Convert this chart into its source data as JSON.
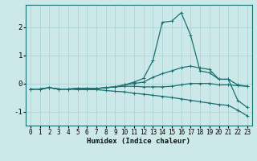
{
  "xlabel": "Humidex (Indice chaleur)",
  "ylabel": "",
  "bg_color": "#cce8e8",
  "grid_color": "#b0d8d8",
  "line_color": "#1a7070",
  "xlim": [
    -0.5,
    23.5
  ],
  "ylim": [
    -1.5,
    2.8
  ],
  "xticks": [
    0,
    1,
    2,
    3,
    4,
    5,
    6,
    7,
    8,
    9,
    10,
    11,
    12,
    13,
    14,
    15,
    16,
    17,
    18,
    19,
    20,
    21,
    22,
    23
  ],
  "yticks": [
    -1,
    0,
    1,
    2
  ],
  "series": [
    {
      "x": [
        0,
        1,
        2,
        3,
        4,
        5,
        6,
        7,
        8,
        9,
        10,
        11,
        12,
        13,
        14,
        15,
        16,
        17,
        18,
        19,
        20,
        21,
        22,
        23
      ],
      "y": [
        -0.2,
        -0.2,
        -0.15,
        -0.2,
        -0.2,
        -0.18,
        -0.18,
        -0.18,
        -0.15,
        -0.12,
        -0.05,
        0.05,
        0.18,
        0.82,
        2.18,
        2.22,
        2.52,
        1.72,
        0.45,
        0.38,
        0.15,
        0.15,
        -0.6,
        -0.85
      ],
      "marker": "+"
    },
    {
      "x": [
        0,
        1,
        2,
        3,
        4,
        5,
        6,
        7,
        8,
        9,
        10,
        11,
        12,
        13,
        14,
        15,
        16,
        17,
        18,
        19,
        20,
        21,
        22,
        23
      ],
      "y": [
        -0.2,
        -0.2,
        -0.15,
        -0.2,
        -0.2,
        -0.18,
        -0.18,
        -0.18,
        -0.15,
        -0.12,
        -0.05,
        0.0,
        0.05,
        0.22,
        0.35,
        0.45,
        0.56,
        0.62,
        0.55,
        0.5,
        0.15,
        0.15,
        -0.05,
        -0.1
      ],
      "marker": "+"
    },
    {
      "x": [
        0,
        1,
        2,
        3,
        4,
        5,
        6,
        7,
        8,
        9,
        10,
        11,
        12,
        13,
        14,
        15,
        16,
        17,
        18,
        19,
        20,
        21,
        22,
        23
      ],
      "y": [
        -0.2,
        -0.2,
        -0.15,
        -0.2,
        -0.2,
        -0.18,
        -0.18,
        -0.18,
        -0.15,
        -0.12,
        -0.1,
        -0.1,
        -0.12,
        -0.12,
        -0.12,
        -0.1,
        -0.05,
        0.0,
        0.0,
        0.0,
        -0.05,
        -0.05,
        -0.08,
        -0.1
      ],
      "marker": "+"
    },
    {
      "x": [
        0,
        1,
        2,
        3,
        4,
        5,
        6,
        7,
        8,
        9,
        10,
        11,
        12,
        13,
        14,
        15,
        16,
        17,
        18,
        19,
        20,
        21,
        22,
        23
      ],
      "y": [
        -0.2,
        -0.2,
        -0.15,
        -0.2,
        -0.2,
        -0.22,
        -0.22,
        -0.22,
        -0.25,
        -0.28,
        -0.3,
        -0.35,
        -0.38,
        -0.42,
        -0.46,
        -0.5,
        -0.55,
        -0.6,
        -0.65,
        -0.7,
        -0.75,
        -0.78,
        -0.95,
        -1.15
      ],
      "marker": "+"
    }
  ]
}
